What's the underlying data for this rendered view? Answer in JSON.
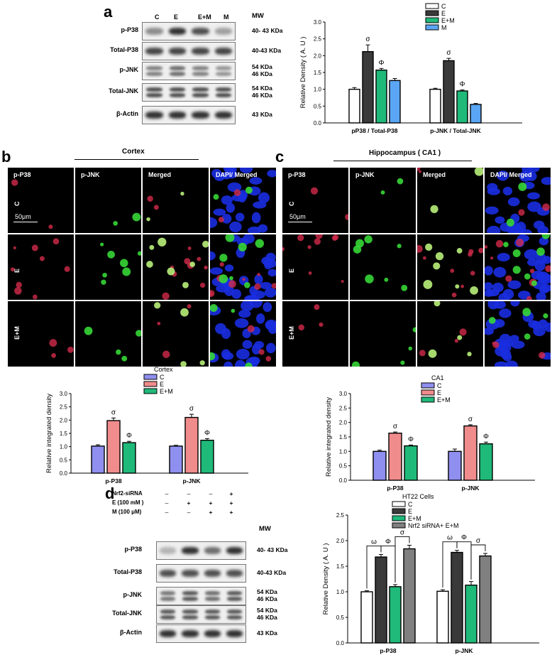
{
  "panels": {
    "a": "a",
    "b": "b",
    "c": "c",
    "d": "d"
  },
  "blot_a": {
    "lanes": [
      "C",
      "E",
      "E+M",
      "M"
    ],
    "mw_header": "MW",
    "rows": [
      {
        "label": "p-P38",
        "mw": "40- 43 KDa",
        "intensity": [
          0.45,
          0.9,
          0.75,
          0.35
        ]
      },
      {
        "label": "Total-P38",
        "mw": "40-43 KDa",
        "intensity": [
          0.8,
          0.8,
          0.8,
          0.8
        ]
      },
      {
        "label": "p-JNK",
        "mw": "54 KDa\n46 KDa",
        "intensity": [
          0.5,
          0.6,
          0.5,
          0.4
        ]
      },
      {
        "label": "Total-JNK",
        "mw": "54 KDa\n46 KDa",
        "intensity": [
          0.75,
          0.75,
          0.75,
          0.75
        ]
      },
      {
        "label": "β-Actin",
        "mw": "43 KDa",
        "intensity": [
          0.9,
          0.9,
          0.9,
          0.9
        ]
      }
    ]
  },
  "blot_d": {
    "conditions": [
      {
        "label": "Nrf2-siRNA",
        "signs": [
          "–",
          "–",
          "–",
          "+"
        ]
      },
      {
        "label": "E  (100 mM )",
        "signs": [
          "–",
          "+",
          "+",
          "+"
        ]
      },
      {
        "label": "M (100 μM)",
        "signs": [
          "–",
          "–",
          "+",
          "+"
        ]
      }
    ],
    "mw_header": "MW",
    "rows": [
      {
        "label": "p-P38",
        "mw": "40- 43 KDa",
        "intensity": [
          0.25,
          0.9,
          0.6,
          0.9
        ]
      },
      {
        "label": "Total-P38",
        "mw": "40-43 KDa",
        "intensity": [
          0.75,
          0.75,
          0.75,
          0.75
        ]
      },
      {
        "label": "p-JNK",
        "mw": "54 KDa\n46 KDa",
        "intensity": [
          0.55,
          0.7,
          0.6,
          0.7
        ]
      },
      {
        "label": "Total-JNK",
        "mw": "54 KDa\n46 KDa",
        "intensity": [
          0.7,
          0.7,
          0.7,
          0.7
        ]
      },
      {
        "label": "β-Actin",
        "mw": "43 KDa",
        "intensity": [
          0.9,
          0.9,
          0.9,
          0.9
        ]
      }
    ]
  },
  "micro_b": {
    "header": "Cortex",
    "columns": [
      "p-P38",
      "p-JNK",
      "Merged",
      "DAPI/ Merged"
    ],
    "rows": [
      "C",
      "E",
      "E+M"
    ],
    "scale": "50μm"
  },
  "micro_c": {
    "header": "Hippocampus ( CA1 )",
    "columns": [
      "p-P38",
      "p-JNK",
      "Merged",
      "DAPI/ Merged"
    ],
    "rows": [
      "C",
      "E",
      "E+M"
    ],
    "scale": "50μm"
  },
  "colors": {
    "C_white": "#ffffff",
    "E_dark": "#3a3a3a",
    "EM_green": "#1fb97a",
    "M_blue": "#5aa6f5",
    "lav": "#8f8ff0",
    "salmon": "#f08c8c",
    "gray": "#808080"
  },
  "chart_data": [
    {
      "id": "a",
      "type": "bar",
      "categories": [
        "pP38 / Total-P38",
        "p-JNK / Total-JNK"
      ],
      "series": [
        {
          "name": "C",
          "values": [
            1.0,
            1.0
          ],
          "errors": [
            0.05,
            0.03
          ],
          "color": "#ffffff"
        },
        {
          "name": "E",
          "values": [
            2.12,
            1.85
          ],
          "errors": [
            0.2,
            0.07
          ],
          "color": "#3a3a3a"
        },
        {
          "name": "E+M",
          "values": [
            1.57,
            0.95
          ],
          "errors": [
            0.05,
            0.03
          ],
          "color": "#1fb97a"
        },
        {
          "name": "M",
          "values": [
            1.26,
            0.55
          ],
          "errors": [
            0.06,
            0.03
          ],
          "color": "#5aa6f5"
        }
      ],
      "annotations": [
        {
          "cat": 0,
          "series": 1,
          "text": "σ"
        },
        {
          "cat": 0,
          "series": 2,
          "text": "Φ"
        },
        {
          "cat": 1,
          "series": 1,
          "text": "σ"
        },
        {
          "cat": 1,
          "series": 2,
          "text": "Φ"
        }
      ],
      "ylabel": "Relative Density ( A. U )",
      "ylim": [
        0,
        3.0
      ],
      "yticks": [
        "0.0",
        "0.5",
        "1.0",
        "1.5",
        "2.0",
        "2.5",
        "3.0"
      ],
      "legend_title": ""
    },
    {
      "id": "b",
      "type": "bar",
      "categories": [
        "p-P38",
        "p-JNK"
      ],
      "series": [
        {
          "name": "C",
          "values": [
            1.02,
            1.02
          ],
          "errors": [
            0.05,
            0.03
          ],
          "color": "#8f8ff0"
        },
        {
          "name": "E",
          "values": [
            1.98,
            2.1
          ],
          "errors": [
            0.1,
            0.12
          ],
          "color": "#f08c8c"
        },
        {
          "name": "E+M",
          "values": [
            1.15,
            1.24
          ],
          "errors": [
            0.05,
            0.06
          ],
          "color": "#1fb97a"
        }
      ],
      "annotations": [
        {
          "cat": 0,
          "series": 1,
          "text": "σ"
        },
        {
          "cat": 0,
          "series": 2,
          "text": "Φ"
        },
        {
          "cat": 1,
          "series": 1,
          "text": "σ"
        },
        {
          "cat": 1,
          "series": 2,
          "text": "Φ"
        }
      ],
      "ylabel": "Relative integrated density",
      "ylim": [
        0,
        3.0
      ],
      "yticks": [
        "0.0",
        "0.5",
        "1.0",
        "1.5",
        "2.0",
        "2.5",
        "3.0"
      ],
      "legend_title": "Cortex"
    },
    {
      "id": "c",
      "type": "bar",
      "categories": [
        "p-P38",
        "p-JNK"
      ],
      "series": [
        {
          "name": "C",
          "values": [
            1.0,
            1.0
          ],
          "errors": [
            0.04,
            0.08
          ],
          "color": "#8f8ff0"
        },
        {
          "name": "E",
          "values": [
            1.63,
            1.88
          ],
          "errors": [
            0.04,
            0.04
          ],
          "color": "#f08c8c"
        },
        {
          "name": "E+M",
          "values": [
            1.19,
            1.26
          ],
          "errors": [
            0.03,
            0.06
          ],
          "color": "#1fb97a"
        }
      ],
      "annotations": [
        {
          "cat": 0,
          "series": 1,
          "text": "σ"
        },
        {
          "cat": 0,
          "series": 2,
          "text": "Φ"
        },
        {
          "cat": 1,
          "series": 1,
          "text": "σ"
        },
        {
          "cat": 1,
          "series": 2,
          "text": "Φ"
        }
      ],
      "ylabel": "Relative integrated density",
      "ylim": [
        0,
        3.0
      ],
      "yticks": [
        "0.0",
        "0.5",
        "1.0",
        "1.5",
        "2.0",
        "2.5",
        "3.0"
      ],
      "legend_title": "CA1"
    },
    {
      "id": "d",
      "type": "bar",
      "categories": [
        "p-P38",
        "p-JNK"
      ],
      "series": [
        {
          "name": "C",
          "values": [
            1.0,
            1.01
          ],
          "errors": [
            0.02,
            0.03
          ],
          "color": "#ffffff"
        },
        {
          "name": "E",
          "values": [
            1.68,
            1.77
          ],
          "errors": [
            0.05,
            0.04
          ],
          "color": "#3a3a3a"
        },
        {
          "name": "E+M",
          "values": [
            1.1,
            1.13
          ],
          "errors": [
            0.04,
            0.07
          ],
          "color": "#1fb97a"
        },
        {
          "name": "Nrf2 siRNA+ E+M",
          "values": [
            1.84,
            1.7
          ],
          "errors": [
            0.07,
            0.05
          ],
          "color": "#808080"
        }
      ],
      "brackets": [
        {
          "cat": 0,
          "from": 0,
          "to": 1,
          "text": "ω"
        },
        {
          "cat": 0,
          "from": 1,
          "to": 2,
          "text": "Φ"
        },
        {
          "cat": 0,
          "from": 2,
          "to": 3,
          "text": "σ"
        },
        {
          "cat": 1,
          "from": 0,
          "to": 1,
          "text": "ω"
        },
        {
          "cat": 1,
          "from": 1,
          "to": 2,
          "text": "Φ"
        },
        {
          "cat": 1,
          "from": 2,
          "to": 3,
          "text": "σ"
        }
      ],
      "ylabel": "Relative Density ( A. U )",
      "ylim": [
        0,
        2.5
      ],
      "yticks": [
        "0.0",
        "0.5",
        "1.0",
        "1.5",
        "2.0",
        "2.5"
      ],
      "legend_title": "HT22 Cells"
    }
  ]
}
